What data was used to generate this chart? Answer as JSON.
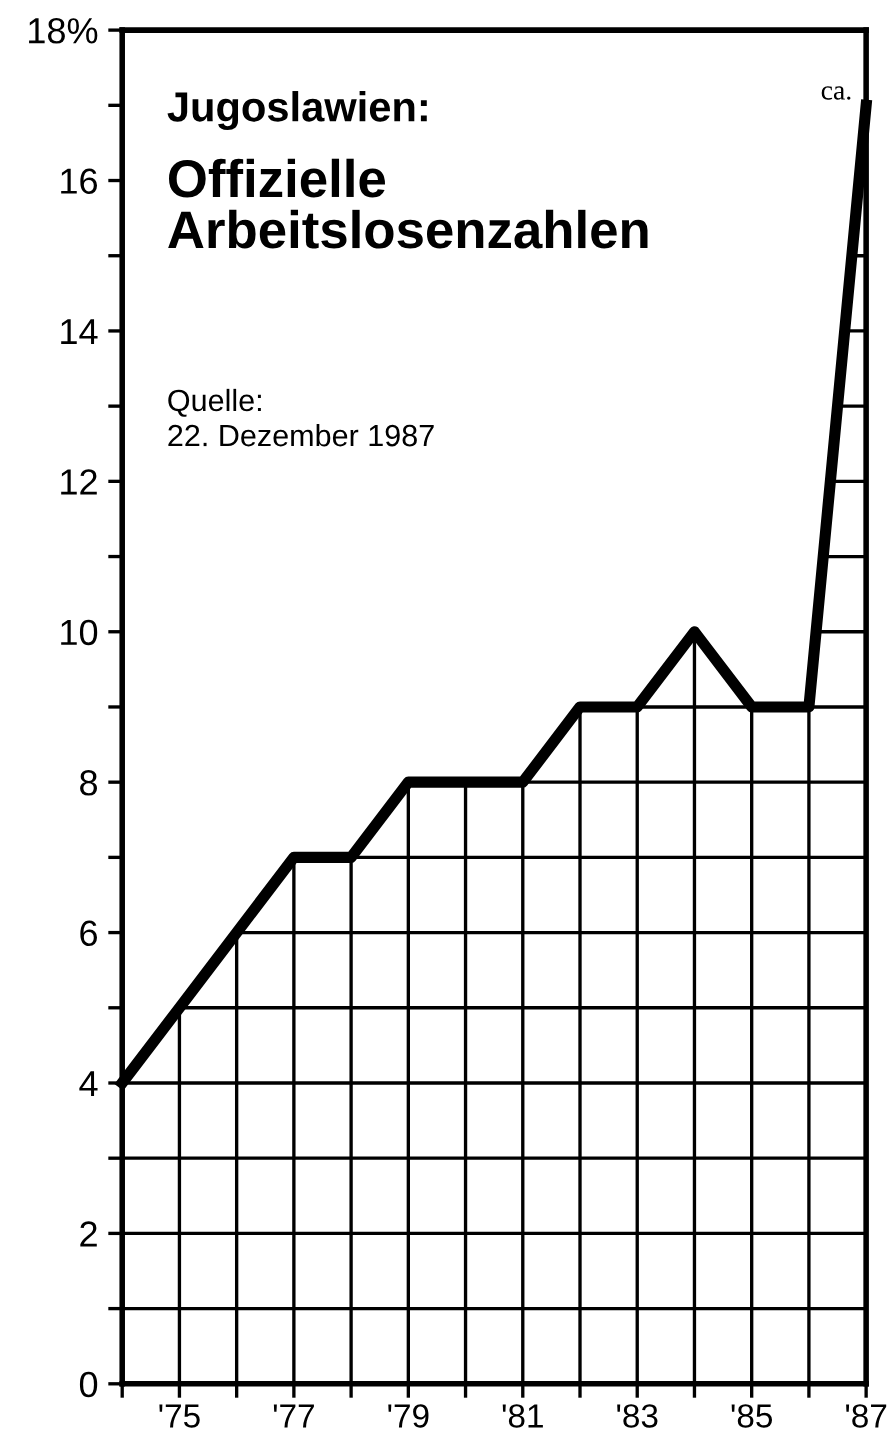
{
  "chart_data": {
    "type": "line",
    "title": "Jugoslawien:",
    "subtitle": "Offizielle\nArbeitslosenzahlen",
    "annotations": [
      "Quelle:\n22. Dezember 1987",
      {
        "text": "ca.",
        "x": 1987,
        "y": 17
      }
    ],
    "x": [
      1974,
      1975,
      1976,
      1977,
      1978,
      1979,
      1980,
      1981,
      1982,
      1983,
      1984,
      1985,
      1986,
      1987
    ],
    "series": [
      {
        "color": "#000000",
        "values": [
          4,
          5,
          6,
          7,
          7,
          8,
          8,
          8,
          9,
          9,
          10,
          9,
          9,
          17
        ]
      }
    ],
    "xlim": [
      1974,
      1987
    ],
    "xticks": [
      {
        "value": 1974,
        "label": null
      },
      {
        "value": 1975,
        "label": "'75"
      },
      {
        "value": 1976,
        "label": null
      },
      {
        "value": 1977,
        "label": "'77"
      },
      {
        "value": 1978,
        "label": null
      },
      {
        "value": 1979,
        "label": "'79"
      },
      {
        "value": 1980,
        "label": null
      },
      {
        "value": 1981,
        "label": "'81"
      },
      {
        "value": 1982,
        "label": null
      },
      {
        "value": 1983,
        "label": "'83"
      },
      {
        "value": 1984,
        "label": null
      },
      {
        "value": 1985,
        "label": "'85"
      },
      {
        "value": 1986,
        "label": null
      },
      {
        "value": 1987,
        "label": "'87"
      }
    ],
    "ylim": [
      0,
      18
    ],
    "yticks": [
      0,
      {
        "value": 1,
        "label": null
      },
      2,
      {
        "value": 3,
        "label": null
      },
      4,
      {
        "value": 5,
        "label": null
      },
      6,
      {
        "value": 7,
        "label": null
      },
      8,
      {
        "value": 9,
        "label": null
      },
      10,
      {
        "value": 11,
        "label": null
      },
      12,
      {
        "value": 13,
        "label": null
      },
      14,
      {
        "value": 15,
        "label": null
      },
      16,
      {
        "value": 17,
        "label": null
      },
      {
        "value": 18,
        "label": "18%"
      }
    ],
    "grid": true,
    "marker": "none",
    "line_style": "solid"
  }
}
